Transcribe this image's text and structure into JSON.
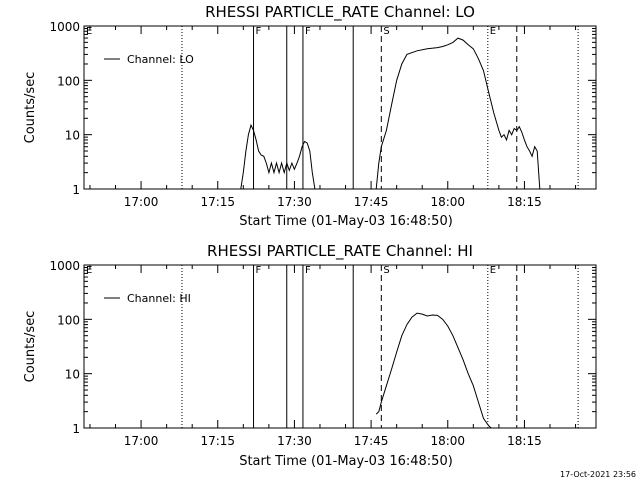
{
  "chart_data": [
    {
      "type": "line",
      "title": "RHESSI PARTICLE_RATE Channel: LO",
      "xlabel": "Start Time (01-May-03 16:48:50)",
      "ylabel": "Counts/sec",
      "yscale": "log",
      "ylim": [
        1,
        1000
      ],
      "xlim": [
        "16:48:50",
        "18:29:00"
      ],
      "xticks": [
        "17:00",
        "17:15",
        "17:30",
        "17:45",
        "18:00",
        "18:15"
      ],
      "yticks": [
        "1",
        "10",
        "100",
        "1000"
      ],
      "legend": {
        "label": "Channel: LO",
        "position": "top-left"
      },
      "grid": false,
      "markers": [
        {
          "time": "16:48:50",
          "label": "E",
          "style": "dotted"
        },
        {
          "time": "17:08:00",
          "label": "",
          "style": "dotted"
        },
        {
          "time": "17:22:00",
          "label": "F",
          "style": "solid"
        },
        {
          "time": "17:28:30",
          "label": "",
          "style": "solid"
        },
        {
          "time": "17:31:40",
          "label": "F",
          "style": "solid"
        },
        {
          "time": "17:41:30",
          "label": "",
          "style": "solid"
        },
        {
          "time": "17:47:00",
          "label": "S",
          "style": "dashed"
        },
        {
          "time": "18:07:50",
          "label": "E",
          "style": "dotted"
        },
        {
          "time": "18:13:30",
          "label": "",
          "style": "dashed"
        },
        {
          "time": "18:25:30",
          "label": "",
          "style": "dotted"
        }
      ],
      "segments": [
        [
          [
            "17:19:30",
            1
          ],
          [
            "17:20:00",
            2
          ],
          [
            "17:20:30",
            5
          ],
          [
            "17:21:00",
            10
          ],
          [
            "17:21:30",
            15
          ],
          [
            "17:22:00",
            12
          ],
          [
            "17:22:30",
            8
          ],
          [
            "17:23:00",
            5
          ],
          [
            "17:23:30",
            4.2
          ],
          [
            "17:24:00",
            4
          ],
          [
            "17:24:30",
            3
          ],
          [
            "17:25:00",
            2
          ],
          [
            "17:25:30",
            3
          ],
          [
            "17:26:00",
            2
          ],
          [
            "17:26:30",
            3
          ],
          [
            "17:27:00",
            2
          ],
          [
            "17:27:30",
            3
          ],
          [
            "17:28:00",
            2
          ],
          [
            "17:28:30",
            3
          ],
          [
            "17:29:00",
            2.2
          ],
          [
            "17:29:30",
            3
          ],
          [
            "17:30:00",
            2.3
          ],
          [
            "17:30:30",
            3
          ],
          [
            "17:31:00",
            4
          ],
          [
            "17:31:30",
            6
          ],
          [
            "17:32:00",
            7.5
          ],
          [
            "17:32:30",
            7
          ],
          [
            "17:33:00",
            5
          ],
          [
            "17:33:30",
            2
          ],
          [
            "17:34:00",
            1
          ]
        ],
        [
          [
            "17:46:00",
            1
          ],
          [
            "17:46:30",
            3
          ],
          [
            "17:47:00",
            6
          ],
          [
            "17:48:00",
            12
          ],
          [
            "17:49:00",
            35
          ],
          [
            "17:50:00",
            100
          ],
          [
            "17:51:00",
            200
          ],
          [
            "17:52:00",
            300
          ],
          [
            "17:54:00",
            350
          ],
          [
            "17:56:00",
            380
          ],
          [
            "17:58:00",
            400
          ],
          [
            "17:59:00",
            420
          ],
          [
            "18:00:00",
            450
          ],
          [
            "18:01:00",
            500
          ],
          [
            "18:02:00",
            600
          ],
          [
            "18:03:00",
            550
          ],
          [
            "18:04:00",
            450
          ],
          [
            "18:05:00",
            380
          ],
          [
            "18:06:00",
            250
          ],
          [
            "18:07:00",
            150
          ],
          [
            "18:08:00",
            60
          ],
          [
            "18:09:00",
            25
          ],
          [
            "18:10:00",
            12
          ],
          [
            "18:10:30",
            9
          ],
          [
            "18:11:00",
            10
          ],
          [
            "18:11:30",
            8
          ],
          [
            "18:12:00",
            12
          ],
          [
            "18:12:30",
            10
          ],
          [
            "18:13:00",
            13
          ],
          [
            "18:13:30",
            12
          ],
          [
            "18:14:00",
            14
          ],
          [
            "18:14:30",
            11
          ],
          [
            "18:15:00",
            8
          ],
          [
            "18:15:30",
            6
          ],
          [
            "18:16:00",
            5
          ],
          [
            "18:16:30",
            4
          ],
          [
            "18:17:00",
            6
          ],
          [
            "18:17:30",
            5
          ],
          [
            "18:18:00",
            1
          ]
        ]
      ]
    },
    {
      "type": "line",
      "title": "RHESSI PARTICLE_RATE Channel: HI",
      "xlabel": "Start Time (01-May-03 16:48:50)",
      "ylabel": "Counts/sec",
      "yscale": "log",
      "ylim": [
        1,
        1000
      ],
      "xlim": [
        "16:48:50",
        "18:29:00"
      ],
      "xticks": [
        "17:00",
        "17:15",
        "17:30",
        "17:45",
        "18:00",
        "18:15"
      ],
      "yticks": [
        "1",
        "10",
        "100",
        "1000"
      ],
      "legend": {
        "label": "Channel: HI",
        "position": "top-left"
      },
      "grid": false,
      "markers": [
        {
          "time": "16:48:50",
          "label": "E",
          "style": "dotted"
        },
        {
          "time": "17:08:00",
          "label": "",
          "style": "dotted"
        },
        {
          "time": "17:22:00",
          "label": "F",
          "style": "solid"
        },
        {
          "time": "17:28:30",
          "label": "",
          "style": "solid"
        },
        {
          "time": "17:31:40",
          "label": "F",
          "style": "solid"
        },
        {
          "time": "17:41:30",
          "label": "",
          "style": "solid"
        },
        {
          "time": "17:47:00",
          "label": "S",
          "style": "dashed"
        },
        {
          "time": "18:07:50",
          "label": "E",
          "style": "dotted"
        },
        {
          "time": "18:13:30",
          "label": "",
          "style": "dashed"
        },
        {
          "time": "18:25:30",
          "label": "",
          "style": "dotted"
        }
      ],
      "segments": [
        [
          [
            "17:46:00",
            1.8
          ],
          [
            "17:46:30",
            2
          ],
          [
            "17:47:00",
            3
          ],
          [
            "17:48:00",
            6
          ],
          [
            "17:49:00",
            12
          ],
          [
            "17:50:00",
            25
          ],
          [
            "17:51:00",
            50
          ],
          [
            "17:52:00",
            80
          ],
          [
            "17:53:00",
            110
          ],
          [
            "17:54:00",
            130
          ],
          [
            "17:55:00",
            125
          ],
          [
            "17:56:00",
            115
          ],
          [
            "17:57:00",
            120
          ],
          [
            "17:58:00",
            118
          ],
          [
            "17:59:00",
            100
          ],
          [
            "18:00:00",
            75
          ],
          [
            "18:01:00",
            50
          ],
          [
            "18:02:00",
            30
          ],
          [
            "18:03:00",
            18
          ],
          [
            "18:04:00",
            10
          ],
          [
            "18:05:00",
            6
          ],
          [
            "18:06:00",
            3
          ],
          [
            "18:07:00",
            1.5
          ],
          [
            "18:08:00",
            1.1
          ],
          [
            "18:08:30",
            1
          ]
        ]
      ]
    }
  ],
  "footer": {
    "timestamp": "17-Oct-2021 23:56"
  }
}
